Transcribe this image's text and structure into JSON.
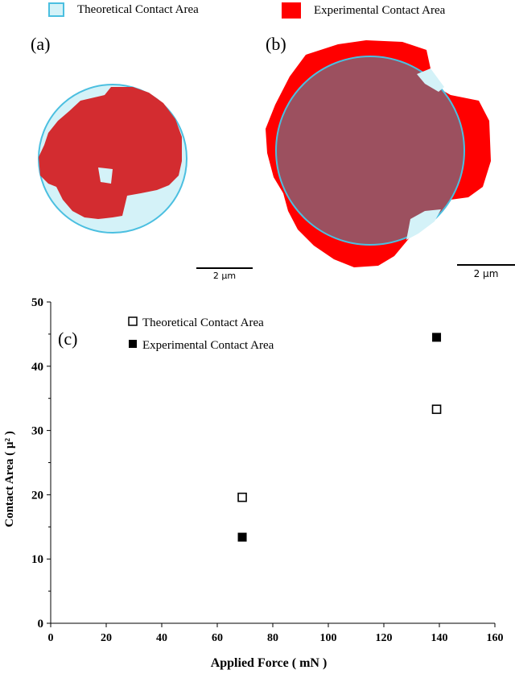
{
  "top_legend": {
    "theoretical": {
      "label": "Theoretical Contact Area",
      "fill": "#d4f2f8",
      "stroke": "#4bbfe0"
    },
    "experimental": {
      "label": "Experimental Contact Area",
      "fill": "#ff0000"
    }
  },
  "panels": {
    "a": {
      "label": "(a)",
      "scale_label": "2 µm",
      "blob_color": "#d32c30"
    },
    "b": {
      "label": "(b)",
      "scale_label": "2 µm",
      "overlap_color": "#9c505f"
    },
    "c": {
      "label": "(c)"
    }
  },
  "chart_data": {
    "type": "scatter",
    "xlabel": "Applied Force ( mN )",
    "ylabel": "Contact Area ( µ² )",
    "xlim": [
      0,
      160
    ],
    "ylim": [
      0,
      50
    ],
    "x_ticks": [
      0,
      20,
      40,
      60,
      80,
      100,
      120,
      140,
      160
    ],
    "y_ticks": [
      0,
      10,
      20,
      30,
      40,
      50
    ],
    "legend_position": "top-left",
    "series": [
      {
        "name": "Theoretical Contact Area",
        "marker": "open-square",
        "x": [
          69,
          139
        ],
        "y": [
          19.6,
          33.3
        ]
      },
      {
        "name": "Experimental Contact Area",
        "marker": "filled-square",
        "x": [
          69,
          139
        ],
        "y": [
          13.4,
          44.5
        ]
      }
    ]
  }
}
